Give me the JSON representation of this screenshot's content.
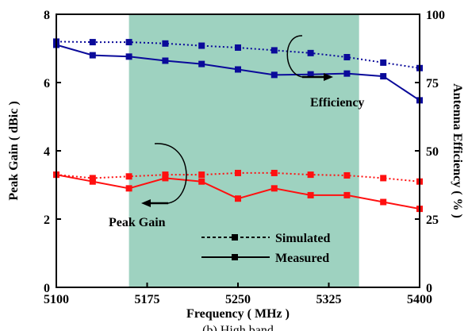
{
  "chart_data": {
    "type": "line",
    "xlabel": "Frequency ( MHz )",
    "ylabel": "Peak Gain ( dBic )",
    "y2label": "Antenna Efficiency ( % )",
    "caption": "(b) High band",
    "xlim": [
      5100,
      5400
    ],
    "ylim": [
      0,
      8
    ],
    "y2lim": [
      0,
      100
    ],
    "xticks": [
      "5100",
      "5175",
      "5250",
      "5325",
      "5400"
    ],
    "yticks": [
      "0",
      "2",
      "4",
      "6",
      "8"
    ],
    "y2ticks": [
      "0",
      "25",
      "50",
      "75",
      "100"
    ],
    "shaded_band": [
      5160,
      5350
    ],
    "colors": {
      "band": "#9ed2c0",
      "efficiency": "#0a0a9a",
      "gain": "#ff1010"
    },
    "annotations": {
      "efficiency": "Efficiency",
      "gain": "Peak Gain"
    },
    "legend": {
      "simulated": "Simulated",
      "measured": "Measured"
    },
    "series": [
      {
        "color_key": "efficiency",
        "style": "dotted",
        "axis": "right",
        "x": [
          5100,
          5130,
          5160,
          5190,
          5220,
          5250,
          5280,
          5310,
          5340,
          5370,
          5400
        ],
        "y": [
          90.0,
          89.8,
          89.8,
          89.3,
          88.5,
          87.8,
          86.8,
          85.8,
          84.3,
          82.3,
          80.3
        ]
      },
      {
        "color_key": "efficiency",
        "style": "solid",
        "axis": "right",
        "x": [
          5100,
          5130,
          5160,
          5190,
          5220,
          5250,
          5280,
          5310,
          5340,
          5370,
          5400
        ],
        "y": [
          88.8,
          85.0,
          84.5,
          83.0,
          81.8,
          79.8,
          77.8,
          78.0,
          78.3,
          77.3,
          68.5
        ]
      },
      {
        "color_key": "gain",
        "style": "dotted",
        "axis": "left",
        "x": [
          5100,
          5130,
          5160,
          5190,
          5220,
          5250,
          5280,
          5310,
          5340,
          5370,
          5400
        ],
        "y": [
          3.3,
          3.2,
          3.25,
          3.3,
          3.3,
          3.35,
          3.35,
          3.3,
          3.28,
          3.2,
          3.1
        ]
      },
      {
        "color_key": "gain",
        "style": "solid",
        "axis": "left",
        "x": [
          5100,
          5130,
          5160,
          5190,
          5220,
          5250,
          5280,
          5310,
          5340,
          5370,
          5400
        ],
        "y": [
          3.3,
          3.1,
          2.9,
          3.2,
          3.1,
          2.6,
          2.9,
          2.7,
          2.7,
          2.5,
          2.3
        ]
      }
    ]
  }
}
